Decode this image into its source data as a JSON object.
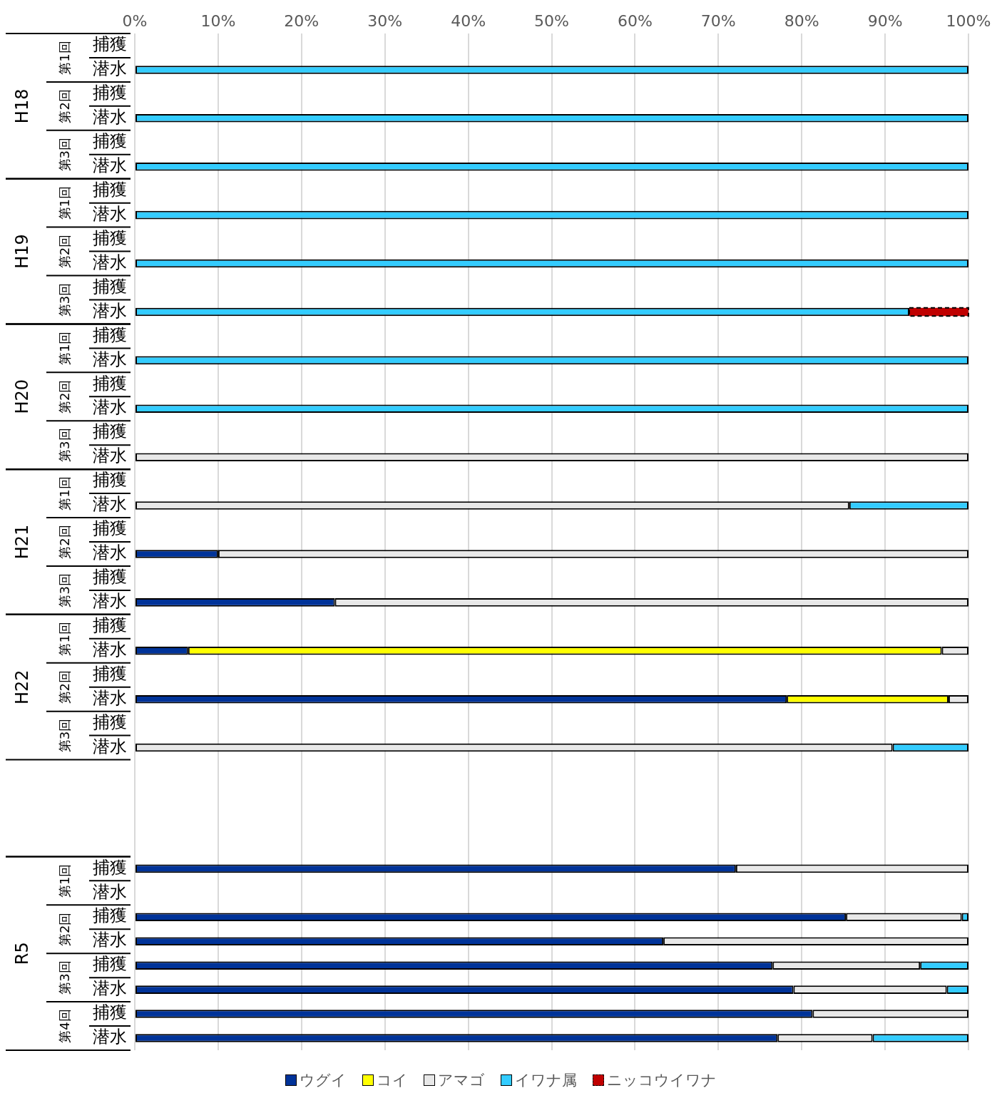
{
  "chart_data": {
    "type": "bar",
    "orientation": "horizontal",
    "stacked": true,
    "categories": [
      "捕獲",
      "潜水",
      "捕獲",
      "潜水",
      "捕獲",
      "潜水",
      "捕獲",
      "潜水",
      "捕獲",
      "潜水",
      "捕獲",
      "潜水",
      "捕獲",
      "潜水",
      "捕獲",
      "潜水",
      "捕獲",
      "潜水",
      "捕獲",
      "潜水",
      "捕獲",
      "潜水",
      "捕獲",
      "潜水",
      "捕獲",
      "潜水",
      "捕獲",
      "潜水",
      "捕獲",
      "潜水",
      null,
      null,
      null,
      null,
      "捕獲",
      "潜水",
      "捕獲",
      "潜水",
      "捕獲",
      "潜水",
      "捕獲",
      "潜水"
    ],
    "series": [
      {
        "name": "ウグイ",
        "color": "#003399",
        "values": [
          null,
          null,
          null,
          null,
          null,
          null,
          null,
          null,
          null,
          null,
          null,
          null,
          null,
          null,
          null,
          null,
          null,
          null,
          null,
          null,
          null,
          10,
          null,
          24,
          null,
          6.4,
          null,
          78.2,
          null,
          null,
          null,
          null,
          null,
          null,
          72.1,
          null,
          85.3,
          63.4,
          76.5,
          79.0,
          81.3,
          77.1
        ]
      },
      {
        "name": "コイ",
        "color": "#ffff00",
        "values": [
          null,
          null,
          null,
          null,
          null,
          null,
          null,
          null,
          null,
          null,
          null,
          null,
          null,
          null,
          null,
          null,
          null,
          null,
          null,
          null,
          null,
          null,
          null,
          null,
          null,
          90.4,
          null,
          19.4,
          null,
          null,
          null,
          null,
          null,
          null,
          null,
          null,
          null,
          null,
          null,
          null,
          null,
          null
        ]
      },
      {
        "name": "アマゴ",
        "color": "#e8e8e8",
        "values": [
          null,
          null,
          null,
          null,
          null,
          null,
          null,
          null,
          null,
          null,
          null,
          null,
          null,
          null,
          null,
          null,
          null,
          100,
          null,
          85.7,
          null,
          90,
          null,
          76,
          null,
          3.2,
          null,
          2.4,
          null,
          90.9,
          null,
          null,
          null,
          null,
          27.9,
          null,
          13.9,
          36.6,
          17.7,
          18.4,
          18.7,
          11.4
        ]
      },
      {
        "name": "イワナ属",
        "color": "#33ccff",
        "values": [
          null,
          100,
          null,
          100,
          null,
          100,
          null,
          100,
          null,
          100,
          null,
          92.9,
          null,
          100,
          null,
          100,
          null,
          null,
          null,
          14.3,
          null,
          null,
          null,
          null,
          null,
          null,
          null,
          null,
          null,
          9.1,
          null,
          null,
          null,
          null,
          null,
          null,
          0.8,
          null,
          5.8,
          2.6,
          null,
          11.5
        ]
      },
      {
        "name": "ニッコウイワナ",
        "color": "#c00000",
        "line_style": "dashed",
        "values": [
          null,
          null,
          null,
          null,
          null,
          null,
          null,
          null,
          null,
          null,
          null,
          7.1,
          null,
          null,
          null,
          null,
          null,
          null,
          null,
          null,
          null,
          null,
          null,
          null,
          null,
          null,
          null,
          null,
          null,
          null,
          null,
          null,
          null,
          null,
          null,
          null,
          null,
          null,
          null,
          null,
          null,
          null
        ]
      }
    ],
    "xlim": [
      0,
      100
    ],
    "xticks": [
      {
        "value": 0,
        "label": "0%"
      },
      {
        "value": 10,
        "label": "10%"
      },
      {
        "value": 20,
        "label": "20%"
      },
      {
        "value": 30,
        "label": "30%"
      },
      {
        "value": 40,
        "label": "40%"
      },
      {
        "value": 50,
        "label": "50%"
      },
      {
        "value": 60,
        "label": "60%"
      },
      {
        "value": 70,
        "label": "70%"
      },
      {
        "value": 80,
        "label": "80%"
      },
      {
        "value": 90,
        "label": "90%"
      },
      {
        "value": 100,
        "label": "100%"
      }
    ],
    "annotations": [
      "H18",
      "第1回",
      "第2回",
      "第3回",
      "H19",
      "第1回",
      "第2回",
      "第3回",
      "H20",
      "第1回",
      "第2回",
      "第3回",
      "H21",
      "第1回",
      "第2回",
      "第3回",
      "H22",
      "第1回",
      "第2回",
      "第3回",
      "R5",
      "第1回",
      "第2回",
      "第3回",
      "第4回"
    ],
    "grid": "x",
    "legend": "bottom"
  }
}
